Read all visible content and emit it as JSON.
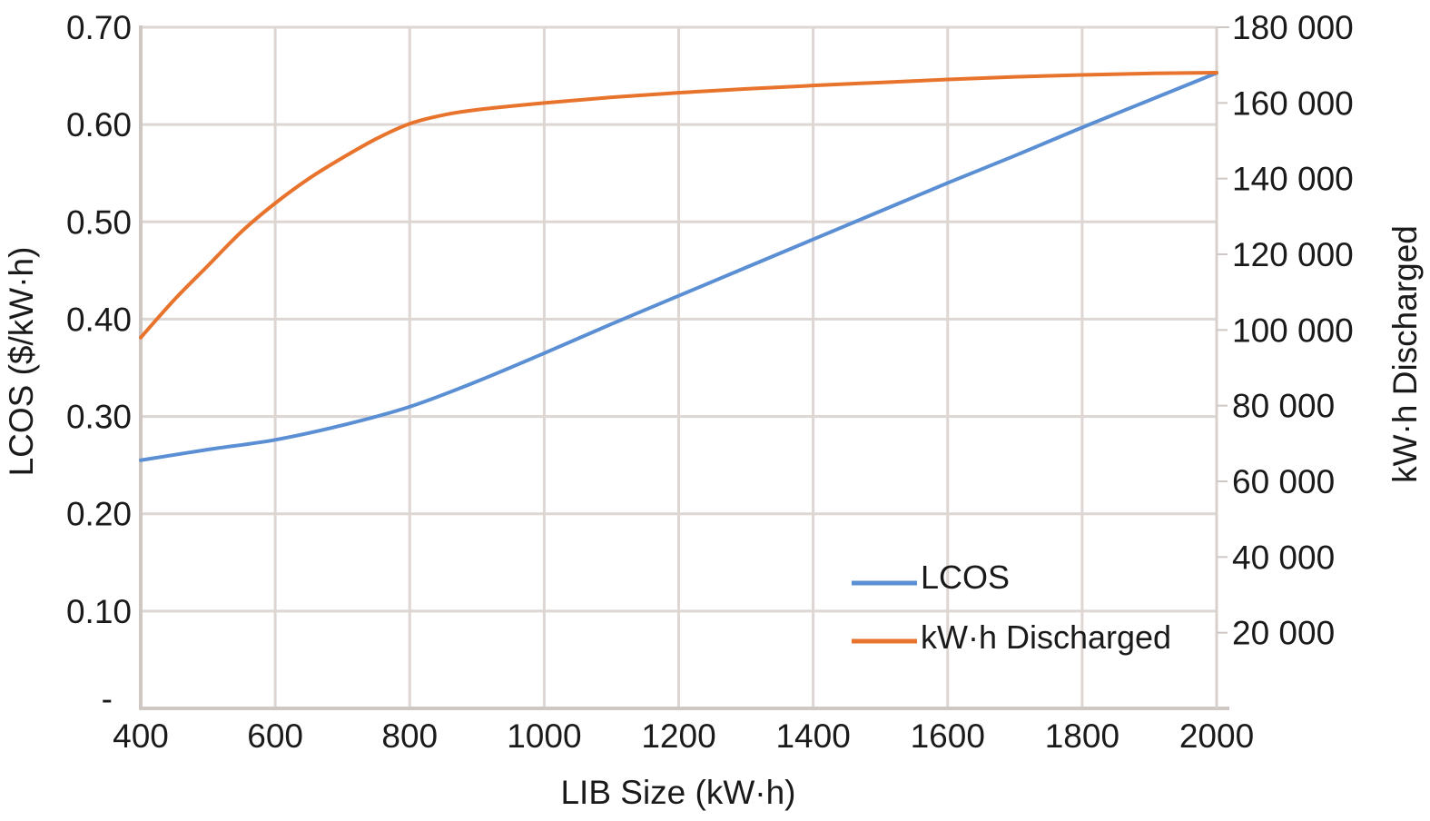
{
  "chart_data": {
    "type": "line",
    "title": "",
    "xlabel": "LIB Size (kW·h)",
    "ylabel": "LCOS ($/kW·h)",
    "y2label": "kW·h Discharged",
    "xlim": [
      400,
      2000
    ],
    "ylim": [
      0,
      0.7
    ],
    "y2lim": [
      0,
      180000
    ],
    "x_ticks": [
      "400",
      "600",
      "800",
      "1000",
      "1200",
      "1400",
      "1600",
      "1800",
      "2000"
    ],
    "x_tick_values": [
      400,
      600,
      800,
      1000,
      1200,
      1400,
      1600,
      1800,
      2000
    ],
    "y_ticks": [
      "-",
      "0.10",
      "0.20",
      "0.30",
      "0.40",
      "0.50",
      "0.60",
      "0.70"
    ],
    "y_tick_values": [
      0,
      0.1,
      0.2,
      0.3,
      0.4,
      0.5,
      0.6,
      0.7
    ],
    "y2_ticks": [
      "20 000",
      "40 000",
      "60 000",
      "80 000",
      "100 000",
      "120 000",
      "140 000",
      "160 000",
      "180 000"
    ],
    "y2_tick_values": [
      20000,
      40000,
      60000,
      80000,
      100000,
      120000,
      140000,
      160000,
      180000
    ],
    "grid": true,
    "legend_position": "bottom-right",
    "series": [
      {
        "name": "LCOS",
        "axis": "left",
        "color": "#5b8fd4",
        "x": [
          400,
          500,
          600,
          700,
          800,
          900,
          1000,
          1100,
          1200,
          1300,
          1400,
          1500,
          1600,
          1700,
          1800,
          1900,
          2000
        ],
        "values": [
          0.255,
          0.266,
          0.276,
          0.291,
          0.31,
          0.336,
          0.365,
          0.395,
          0.424,
          0.453,
          0.482,
          0.511,
          0.54,
          0.568,
          0.597,
          0.625,
          0.653
        ]
      },
      {
        "name": "kW·h Discharged",
        "axis": "right",
        "color": "#e8732c",
        "x": [
          400,
          450,
          500,
          550,
          600,
          650,
          700,
          750,
          800,
          850,
          900,
          1000,
          1100,
          1200,
          1300,
          1400,
          1500,
          1600,
          1700,
          1800,
          1900,
          2000
        ],
        "values": [
          98000,
          108000,
          117000,
          126000,
          133500,
          140000,
          145500,
          150500,
          154500,
          156800,
          158200,
          160000,
          161500,
          162700,
          163700,
          164600,
          165400,
          166200,
          166900,
          167400,
          167800,
          168000
        ]
      }
    ]
  }
}
